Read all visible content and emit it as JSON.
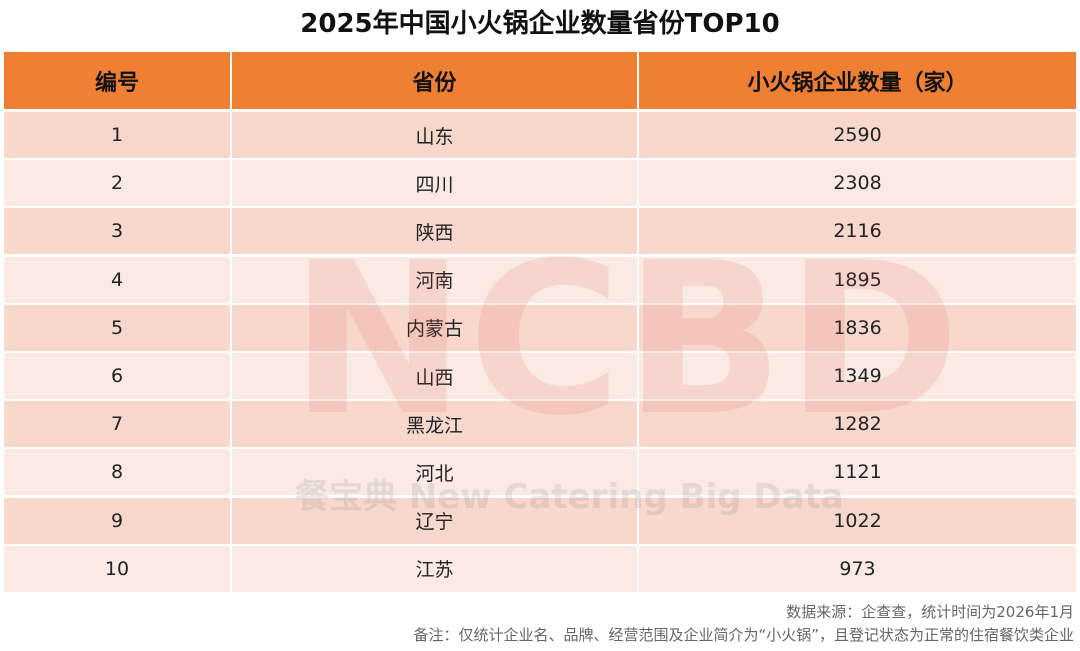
{
  "title": "2025年中国小火锅企业数量省份TOP10",
  "table": {
    "header": [
      "编号",
      "省份",
      "小火锅企业数量（家）"
    ],
    "rows": [
      [
        1,
        "山东",
        2590
      ],
      [
        2,
        "四川",
        2308
      ],
      [
        3,
        "陕西",
        2116
      ],
      [
        4,
        "河南",
        1895
      ],
      [
        5,
        "内蒙古",
        1836
      ],
      [
        6,
        "山西",
        1349
      ],
      [
        7,
        "黑龙江",
        1282
      ],
      [
        8,
        "河北",
        1121
      ],
      [
        9,
        "辽宁",
        1022
      ],
      [
        10,
        "江苏",
        973
      ]
    ]
  },
  "watermark": {
    "logo": "NCBD",
    "text": "餐宝典 New Catering Big Data"
  },
  "footer": {
    "source": "数据来源：企查查，统计时间为2026年1月",
    "note": "备注：仅统计企业名、品牌、经营范围及企业简介为“小火锅”，且登记状态为正常的住宿餐饮类企业"
  }
}
